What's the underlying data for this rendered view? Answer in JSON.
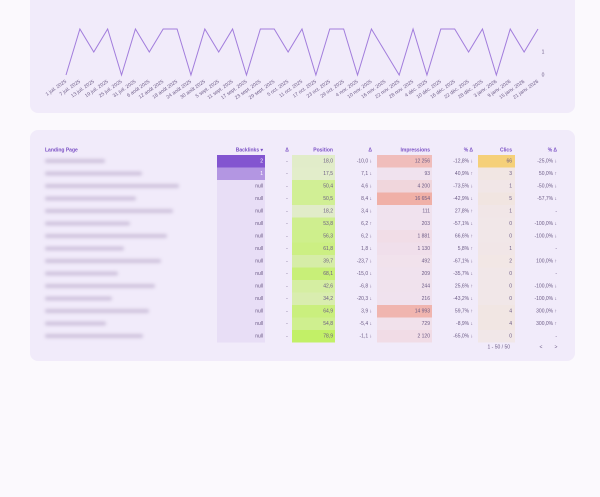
{
  "chart_data": {
    "type": "line",
    "categories": [
      "1 juil. 2025",
      "7 juil. 2025",
      "13 juil. 2025",
      "19 juil. 2025",
      "25 juil. 2025",
      "31 juil. 2025",
      "6 août 2025",
      "12 août 2025",
      "18 août 2025",
      "24 août 2025",
      "30 août 2025",
      "5 sept. 2025",
      "11 sept. 2025",
      "17 sept. 2025",
      "23 sept. 2025",
      "29 sept. 2025",
      "5 oct. 2025",
      "11 oct. 2025",
      "17 oct. 2025",
      "23 oct. 2025",
      "29 oct. 2025",
      "4 nov. 2025",
      "10 nov. 2025",
      "16 nov. 2025",
      "22 nov. 2025",
      "28 nov. 2025",
      "4 déc. 2025",
      "10 déc. 2025",
      "16 déc. 2025",
      "22 déc. 2025",
      "28 déc. 2025",
      "3 janv. 2026",
      "9 janv. 2026",
      "15 janv. 2026",
      "21 janv. 2026"
    ],
    "series": [
      {
        "color": "#a27ddc",
        "values": [
          0,
          2,
          1,
          2,
          0,
          2,
          1,
          2,
          2,
          0,
          2,
          1,
          2,
          0,
          2,
          2,
          1,
          2,
          0,
          2,
          2,
          0,
          2,
          1,
          0,
          2,
          0,
          2,
          2,
          1,
          2,
          0,
          2,
          1,
          2
        ],
        "axis": "y2"
      }
    ],
    "y2lim": [
      0,
      2
    ],
    "y2ticks": [
      0,
      1
    ]
  },
  "table": {
    "headers": [
      "Landing Page",
      "Backlinks ▾",
      "Δ",
      "Position",
      "Δ",
      "Impressions",
      "% Δ",
      "Clics",
      "% Δ"
    ],
    "rows": [
      [
        "2",
        "-",
        "18,0",
        "-10,0 ↓",
        "12 256",
        "-12,8% ↓",
        "66",
        "-25,0% ↓"
      ],
      [
        "1",
        "-",
        "17,5",
        "7,1 ↓",
        "93",
        "40,9% ↑",
        "3",
        "50,0% ↑"
      ],
      [
        "null",
        "-",
        "50,4",
        "4,6 ↓",
        "4 200",
        "-73,5% ↓",
        "1",
        "-50,0% ↓"
      ],
      [
        "null",
        "-",
        "50,5",
        "8,4 ↓",
        "16 654",
        "-42,9% ↓",
        "5",
        "-57,7% ↓"
      ],
      [
        "null",
        "-",
        "18,2",
        "3,4 ↓",
        "111",
        "27,8% ↑",
        "1",
        "-"
      ],
      [
        "null",
        "-",
        "53,8",
        "6,2 ↑",
        "203",
        "-57,1% ↓",
        "0",
        "-100,0% ↓"
      ],
      [
        "null",
        "-",
        "56,3",
        "6,2 ↓",
        "1 881",
        "66,6% ↑",
        "0",
        "-100,0% ↓"
      ],
      [
        "null",
        "-",
        "61,8",
        "1,8 ↓",
        "1 130",
        "5,8% ↑",
        "1",
        "-"
      ],
      [
        "null",
        "-",
        "39,7",
        "-23,7 ↓",
        "492",
        "-67,1% ↓",
        "2",
        "100,0% ↑"
      ],
      [
        "null",
        "-",
        "68,1",
        "-15,0 ↓",
        "209",
        "-35,7% ↓",
        "0",
        "-"
      ],
      [
        "null",
        "-",
        "42,6",
        "-6,8 ↓",
        "244",
        "25,6% ↑",
        "0",
        "-100,0% ↓"
      ],
      [
        "null",
        "-",
        "34,2",
        "-20,3 ↓",
        "216",
        "-43,2% ↓",
        "0",
        "-100,0% ↓"
      ],
      [
        "null",
        "-",
        "64,9",
        "3,9 ↓",
        "14 993",
        "59,7% ↑",
        "4",
        "300,0% ↑"
      ],
      [
        "null",
        "-",
        "54,8",
        "-5,4 ↓",
        "729",
        "-8,9% ↓",
        "4",
        "300,0% ↑"
      ],
      [
        "null",
        "-",
        "78,9",
        "-1,1 ↓",
        "2 120",
        "-65,0% ↓",
        "0",
        "-"
      ]
    ],
    "pagination": "1 - 50 / 50",
    "prev": "<",
    "next": ">"
  }
}
